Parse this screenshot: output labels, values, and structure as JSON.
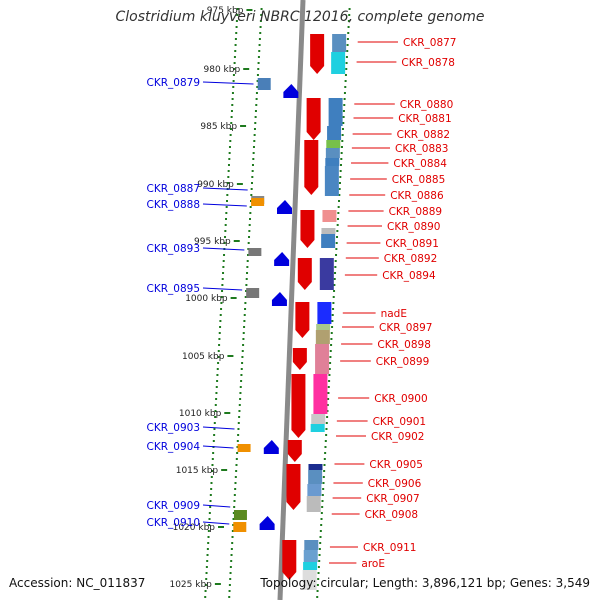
{
  "title": "Clostridium kluyveri NBRC 12016, complete genome",
  "accession": "Accession: NC_011837",
  "stats": "Topology: circular; Length: 3,896,121 bp; Genes: 3,549",
  "ruler": [
    "975 kbp",
    "980 kbp",
    "985 kbp",
    "990 kbp",
    "995 kbp",
    "1000 kbp",
    "1005 kbp",
    "1010 kbp",
    "1015 kbp",
    "1020 kbp",
    "1025 kbp"
  ],
  "colors": {
    "forward": "#e00000",
    "reverse": "#0000dd",
    "axis": "#8a8a8a",
    "ticks": "#1e7a1e"
  },
  "labels_left": [
    "CKR_0879",
    "CKR_0887",
    "CKR_0888",
    "CKR_0893",
    "CKR_0895",
    "CKR_0903",
    "CKR_0904",
    "CKR_0909",
    "CKR_0910"
  ],
  "labels_right": [
    "CKR_0877",
    "CKR_0878",
    "CKR_0880",
    "CKR_0881",
    "CKR_0882",
    "CKR_0883",
    "CKR_0884",
    "CKR_0885",
    "CKR_0886",
    "CKR_0889",
    "CKR_0890",
    "CKR_0891",
    "CKR_0892",
    "CKR_0894",
    "nadE",
    "CKR_0897",
    "CKR_0898",
    "CKR_0899",
    "CKR_0900",
    "CKR_0901",
    "CKR_0902",
    "CKR_0905",
    "CKR_0906",
    "CKR_0907",
    "CKR_0908",
    "CKR_0911",
    "aroE"
  ]
}
